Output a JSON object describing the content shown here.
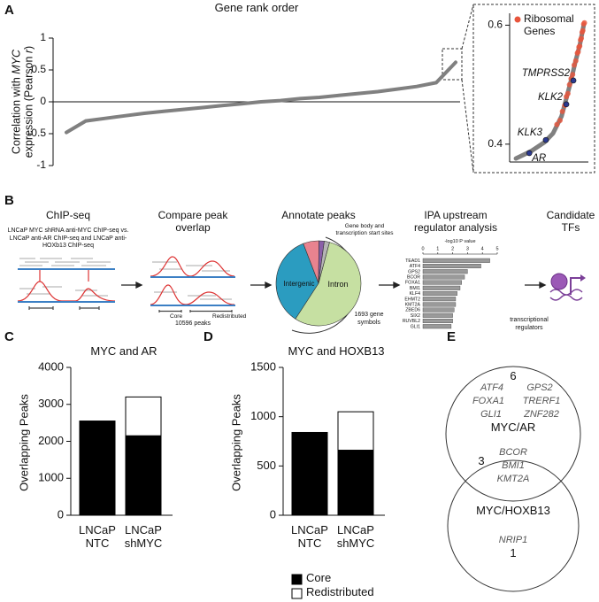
{
  "panel_labels": [
    "A",
    "B",
    "C",
    "D",
    "E"
  ],
  "chart_data": [
    {
      "type": "line",
      "title": "Gene rank order",
      "ylabel": [
        "Correlation with ",
        "MYC",
        " expression (Pearson ",
        "r",
        ")"
      ],
      "values": [
        -0.48,
        -0.3,
        -0.26,
        -0.22,
        -0.18,
        -0.15,
        -0.12,
        -0.09,
        -0.06,
        -0.03,
        0,
        0.02,
        0.05,
        0.07,
        0.1,
        0.13,
        0.16,
        0.2,
        0.24,
        0.3,
        0.62
      ],
      "color": "#808080",
      "ylim": [
        -1,
        1
      ],
      "yticks": [
        -1,
        -0.5,
        0,
        0.5,
        1
      ],
      "inset": {
        "type": "scatter",
        "xlim": [
          0,
          1
        ],
        "ylim": [
          0.37,
          0.62
        ],
        "yticks": [
          0.4,
          0.6
        ],
        "curve": {
          "color": "#808080",
          "x": [
            0.08,
            0.27,
            0.44,
            0.55,
            0.66,
            0.72,
            0.78,
            0.83,
            0.89,
            0.94
          ],
          "values": [
            0.376,
            0.388,
            0.403,
            0.418,
            0.447,
            0.477,
            0.507,
            0.536,
            0.566,
            0.6
          ]
        },
        "series": [
          {
            "name": "Ribosomal Genes",
            "color": "#e8553c",
            "x": [
              0.6,
              0.64,
              0.67,
              0.7,
              0.72,
              0.74,
              0.76,
              0.78,
              0.8,
              0.82,
              0.84,
              0.86,
              0.87,
              0.88,
              0.89,
              0.9,
              0.91,
              0.92,
              0.93,
              0.94,
              0.95
            ],
            "values": [
              0.433,
              0.44,
              0.455,
              0.465,
              0.48,
              0.485,
              0.5,
              0.51,
              0.517,
              0.533,
              0.54,
              0.553,
              0.555,
              0.563,
              0.565,
              0.575,
              0.578,
              0.588,
              0.591,
              0.602,
              0.604
            ]
          }
        ],
        "genes": {
          "color": "#2b3990",
          "names": [
            "AR",
            "KLK3",
            "KLK2",
            "TMPRSS2"
          ],
          "x": [
            0.25,
            0.46,
            0.72,
            0.81
          ],
          "values": [
            0.385,
            0.407,
            0.467,
            0.507
          ]
        }
      }
    },
    {
      "type": "bar",
      "stacked": true,
      "title": "MYC and AR",
      "ylabel": "Overlapping Peaks",
      "categories": [
        "LNCaP NTC",
        "LNCaP shMYC"
      ],
      "series": [
        {
          "name": "Core",
          "color": "#000000",
          "values": [
            2550,
            2150
          ]
        },
        {
          "name": "Redistributed",
          "color": "#ffffff",
          "values": [
            0,
            1050
          ]
        }
      ],
      "ylim": [
        0,
        4000
      ],
      "yticks": [
        0,
        1000,
        2000,
        3000,
        4000
      ]
    },
    {
      "type": "bar",
      "stacked": true,
      "title": "MYC and HOXB13",
      "ylabel": "Overlapping Peaks",
      "categories": [
        "LNCaP NTC",
        "LNCaP shMYC"
      ],
      "series": [
        {
          "color": "#000000",
          "values": [
            840,
            660
          ]
        },
        {
          "color": "#ffffff",
          "values": [
            0,
            390
          ]
        }
      ],
      "ylim": [
        0,
        1500
      ],
      "yticks": [
        0,
        500,
        1000,
        1500
      ]
    }
  ],
  "workflow": {
    "steps": [
      {
        "title": "ChIP-seq",
        "description": "LNCaP MYC shRNA anti-MYC ChIP-seq vs. LNCaP anti-AR ChIP-seq and LNCaP anti-HOXb13 ChIP-seq"
      },
      {
        "title": "Compare peak overlap",
        "labels": [
          "Core",
          "Redistributed",
          "10596 peaks"
        ]
      },
      {
        "title": "Annotate peaks",
        "pie": {
          "type": "pie",
          "categories": [
            "Intron",
            "Intergenic",
            null,
            null,
            null
          ],
          "values": [
            55,
            35,
            6,
            2,
            2
          ],
          "colors": [
            "#c6e0a2",
            "#2b9cc0",
            "#e8838f",
            "#8a5fa8",
            "#b5b5b5"
          ]
        },
        "labels": [
          "Gene body and transcription start sites",
          "1693 gene symbols"
        ]
      },
      {
        "title": "IPA upstream regulator analysis",
        "chart": {
          "type": "bar",
          "orientation": "horizontal",
          "xlabel": "-log10 P value",
          "categories": [
            "TEAD1",
            "ATF4",
            "GPS2",
            "BCOR",
            "FOXA1",
            "BMI1",
            "KLF4",
            "EHMT2",
            "KMT2A",
            "ZBED6",
            "SIX2",
            "RUVBL2",
            "GLI1"
          ],
          "values": [
            4.5,
            3.9,
            3.0,
            2.8,
            2.6,
            2.5,
            2.3,
            2.2,
            2.2,
            2.1,
            2.0,
            2.0,
            1.9
          ],
          "color": "#9a9a9a",
          "xlim": [
            0,
            5
          ],
          "xticks": [
            0,
            1,
            2,
            3,
            4,
            5
          ]
        },
        "label": "transcriptional regulators"
      },
      {
        "title": "Candidate TFs"
      }
    ]
  },
  "venn": {
    "sets": [
      {
        "label": "MYC/AR",
        "count": 6,
        "genes": [
          "ATF4",
          "GPS2",
          "FOXA1",
          "TRERF1",
          "GLI1",
          "ZNF282"
        ]
      },
      {
        "label": "MYC/HOXB13",
        "count": 1,
        "genes": [
          "NRIP1"
        ]
      }
    ],
    "overlap": {
      "count": 3,
      "genes": [
        "BCOR",
        "BMI1",
        "KMT2A"
      ]
    }
  }
}
